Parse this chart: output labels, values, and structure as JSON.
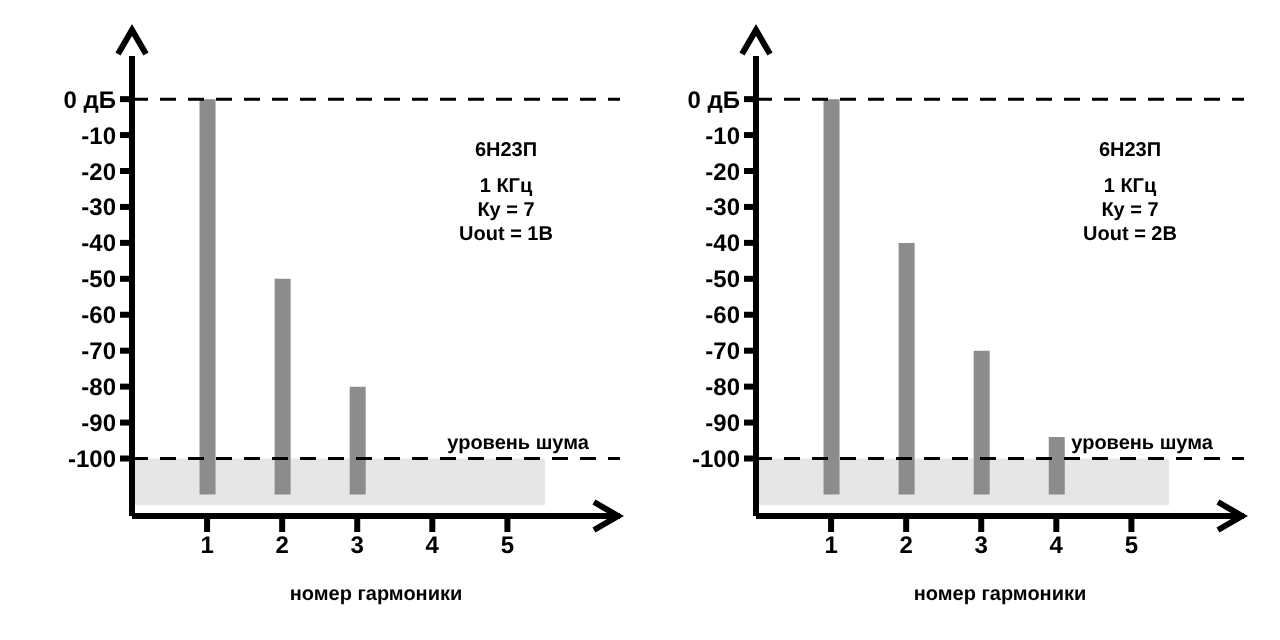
{
  "chart_data": [
    {
      "type": "bar",
      "xlabel": "номер гармоники",
      "x": [
        1,
        2,
        3
      ],
      "base": [
        -110,
        -110,
        -110
      ],
      "values": [
        110,
        60,
        30
      ],
      "color": "#8c8c8c",
      "xlim": [
        0,
        6.5
      ],
      "xticks": [
        1,
        2,
        3,
        4,
        5
      ],
      "ylim": [
        -116,
        12
      ],
      "yticks": [
        {
          "value": 0,
          "label": "0 дБ"
        },
        -10,
        -20,
        -30,
        -40,
        -50,
        -60,
        -70,
        -80,
        -90,
        -100
      ],
      "ref_lines": [
        {
          "axis": "y",
          "value": 0,
          "line_style": "dashed",
          "color": "#000000"
        },
        {
          "axis": "y",
          "value": -100,
          "line_style": "dashed",
          "color": "#000000"
        }
      ],
      "bands": [
        {
          "axis": "y",
          "from": -113,
          "to": -100,
          "label": "уровень шума",
          "color": "#e6e6e6"
        }
      ],
      "annotations": [
        "6Н23П",
        "1 КГц",
        "Ку = 7",
        "Uout = 1В"
      ]
    },
    {
      "type": "bar",
      "xlabel": "номер гармоники",
      "x": [
        1,
        2,
        3,
        4
      ],
      "base": [
        -110,
        -110,
        -110,
        -110
      ],
      "values": [
        110,
        70,
        40,
        16
      ],
      "color": "#8c8c8c",
      "xlim": [
        0,
        6.5
      ],
      "xticks": [
        1,
        2,
        3,
        4,
        5
      ],
      "ylim": [
        -116,
        12
      ],
      "yticks": [
        {
          "value": 0,
          "label": "0 дБ"
        },
        -10,
        -20,
        -30,
        -40,
        -50,
        -60,
        -70,
        -80,
        -90,
        -100
      ],
      "ref_lines": [
        {
          "axis": "y",
          "value": 0,
          "line_style": "dashed",
          "color": "#000000"
        },
        {
          "axis": "y",
          "value": -100,
          "line_style": "dashed",
          "color": "#000000"
        }
      ],
      "bands": [
        {
          "axis": "y",
          "from": -113,
          "to": -100,
          "label": "уровень шума",
          "color": "#e6e6e6"
        }
      ],
      "annotations": [
        "6Н23П",
        "1 КГц",
        "Ку = 7",
        "Uout = 2В"
      ]
    }
  ]
}
